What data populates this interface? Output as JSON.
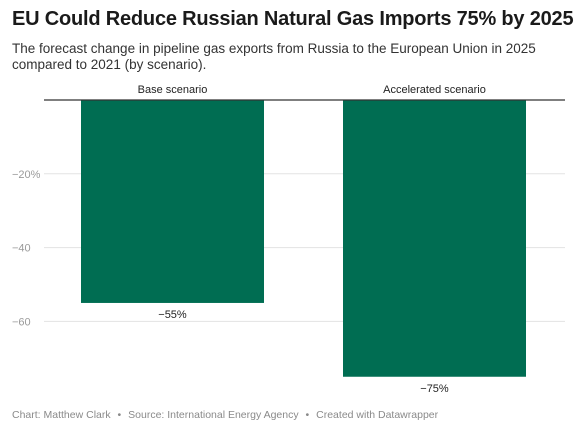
{
  "header": {
    "title": "EU Could Reduce Russian Natural Gas Imports 75% by 2025",
    "subtitle": "The forecast change in pipeline gas exports from Russia to the European Union in 2025 compared to 2021 (by scenario)."
  },
  "footer": {
    "chart_by": "Chart: Matthew Clark",
    "source": "Source: International Energy Agency",
    "tool": "Created with Datawrapper",
    "separator": "•"
  },
  "colors": {
    "bar": "#006d52",
    "grid": "#e3e3e3",
    "baseline": "#333333",
    "tick_text": "#9a9a9a"
  },
  "chart_data": {
    "type": "bar",
    "categories": [
      "Base scenario",
      "Accelerated scenario"
    ],
    "values": [
      -55,
      -75
    ],
    "value_labels": [
      "−55%",
      "−75%"
    ],
    "yticks": [
      -20,
      -40,
      -60
    ],
    "ytick_labels": [
      "−20%",
      "−40",
      "−60"
    ],
    "ylim": [
      -80,
      0
    ],
    "grid": true,
    "xlabel": "",
    "ylabel": ""
  }
}
